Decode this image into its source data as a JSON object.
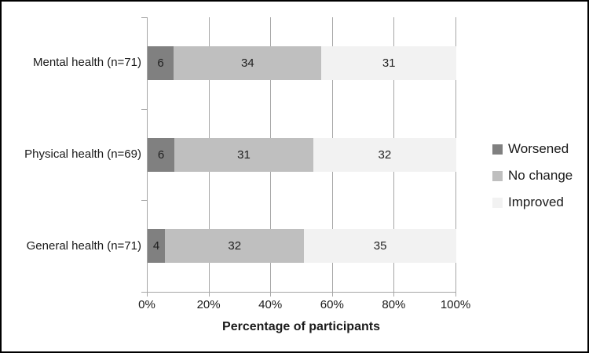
{
  "chart_data": {
    "type": "bar",
    "orientation": "horizontal",
    "stacked": true,
    "note": "100% stacked bar; segment labels are participant counts, widths are count/row-total",
    "categories": [
      "Mental health (n=71)",
      "Physical health (n=69)",
      "General health (n=71)"
    ],
    "series": [
      {
        "name": "Worsened",
        "color": "#808080",
        "values": [
          6,
          6,
          4
        ]
      },
      {
        "name": "No change",
        "color": "#bfbfbf",
        "values": [
          34,
          31,
          32
        ]
      },
      {
        "name": "Improved",
        "color": "#f2f2f2",
        "values": [
          31,
          32,
          35
        ]
      }
    ],
    "xlabel": "Percentage of participants",
    "x_ticks": [
      "0%",
      "20%",
      "40%",
      "60%",
      "80%",
      "100%"
    ],
    "xlim": [
      0,
      100
    ],
    "grid": "vertical",
    "legend_position": "right"
  },
  "colors": {
    "background": "#ffffff",
    "border": "#000000",
    "grid": "#a6a6a6",
    "axis": "#a6a6a6",
    "text": "#1a1a1a"
  }
}
